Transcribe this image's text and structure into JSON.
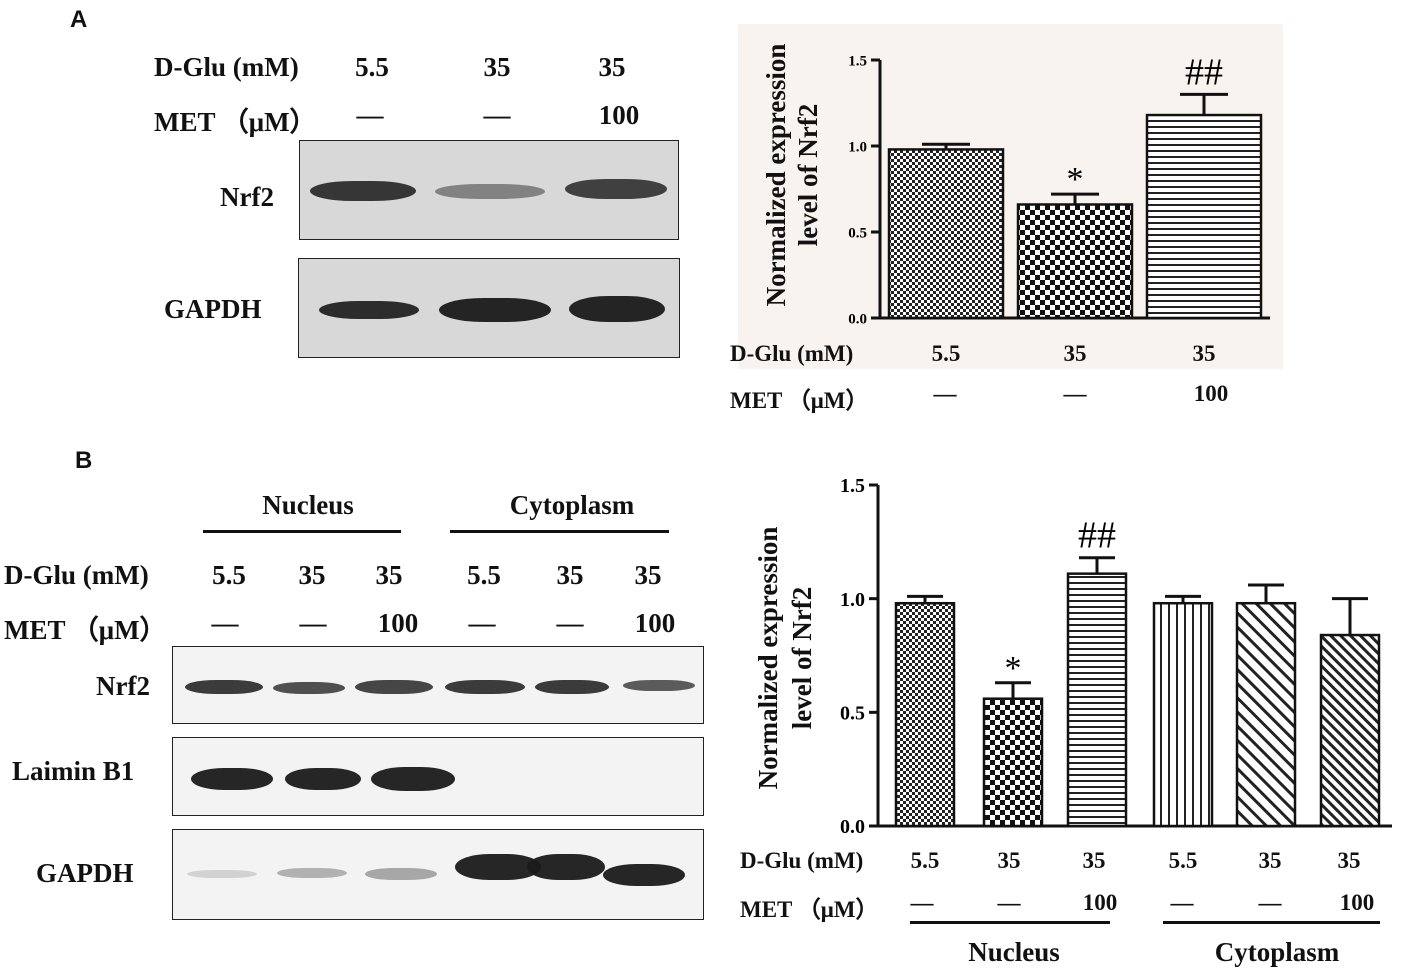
{
  "panel_a": {
    "letter": "A",
    "conditions": {
      "dglu_label": "D-Glu (mM)",
      "met_label": "MET （μM）",
      "dglu": [
        "5.5",
        "35",
        "35"
      ],
      "met": [
        "—",
        "—",
        "100"
      ]
    },
    "blots": [
      {
        "label": "Nrf2",
        "band_intensity": [
          0.85,
          0.45,
          0.8
        ]
      },
      {
        "label": "GAPDH",
        "band_intensity": [
          0.9,
          0.95,
          0.95
        ]
      }
    ]
  },
  "panel_b": {
    "letter": "B",
    "groups": [
      "Nucleus",
      "Cytoplasm"
    ],
    "conditions": {
      "dglu_label": "D-Glu (mM)",
      "met_label": "MET （μM）",
      "dglu": [
        "5.5",
        "35",
        "35",
        "5.5",
        "35",
        "35"
      ],
      "met": [
        "—",
        "—",
        "100",
        "—",
        "—",
        "100"
      ]
    },
    "blots": [
      {
        "label": "Nrf2",
        "band_intensity": [
          0.85,
          0.75,
          0.8,
          0.85,
          0.85,
          0.7
        ]
      },
      {
        "label": "Laimin B1",
        "band_intensity": [
          0.95,
          0.95,
          0.95,
          0.02,
          0.02,
          0.02
        ]
      },
      {
        "label": "GAPDH",
        "band_intensity": [
          0.15,
          0.3,
          0.35,
          0.95,
          0.95,
          0.95
        ]
      }
    ]
  },
  "chart_data": [
    {
      "type": "bar",
      "ylabel_line1": "Normalized expression",
      "ylabel_line2": "level of Nrf2",
      "ylim": [
        0,
        1.5
      ],
      "yticks": [
        "0.0",
        "0.5",
        "1.0",
        "1.5"
      ],
      "categories": [
        "5.5 / —",
        "35 / —",
        "35 / 100"
      ],
      "values": [
        0.98,
        0.66,
        1.18
      ],
      "errors": [
        0.03,
        0.06,
        0.12
      ],
      "annotations": [
        "",
        "*",
        "##"
      ],
      "patterns": [
        "dense-check",
        "check",
        "hlines"
      ],
      "x_row_labels": {
        "dglu_label": "D-Glu (mM)",
        "met_label": "MET （μM）",
        "dglu": [
          "5.5",
          "35",
          "35"
        ],
        "met": [
          "—",
          "—",
          "100"
        ]
      }
    },
    {
      "type": "bar",
      "ylabel_line1": "Normalized expression",
      "ylabel_line2": "level of Nrf2",
      "ylim": [
        0,
        1.5
      ],
      "yticks": [
        "0.0",
        "0.5",
        "1.0",
        "1.5"
      ],
      "categories": [
        "5.5 / —",
        "35 / —",
        "35 / 100",
        "5.5 / —",
        "35 / —",
        "35 / 100"
      ],
      "values": [
        0.98,
        0.56,
        1.11,
        0.98,
        0.98,
        0.84
      ],
      "errors": [
        0.03,
        0.07,
        0.07,
        0.03,
        0.08,
        0.16
      ],
      "annotations": [
        "",
        "*",
        "##",
        "",
        "",
        ""
      ],
      "patterns": [
        "dense-check",
        "check",
        "hlines",
        "vlines",
        "diag",
        "diag2"
      ],
      "groups": [
        "Nucleus",
        "Cytoplasm"
      ],
      "x_row_labels": {
        "dglu_label": "D-Glu (mM)",
        "met_label": "MET （μM）",
        "dglu": [
          "5.5",
          "35",
          "35",
          "5.5",
          "35",
          "35"
        ],
        "met": [
          "—",
          "—",
          "100",
          "—",
          "—",
          "100"
        ]
      }
    }
  ]
}
